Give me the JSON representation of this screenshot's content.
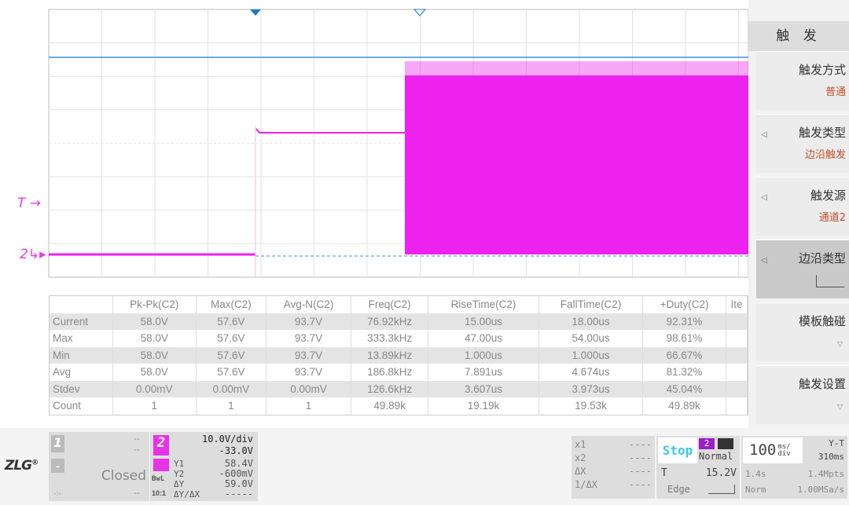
{
  "waveform": {
    "channel_marker": "2",
    "trigger_marker": "T",
    "colors": {
      "ch2": "#ee22ee",
      "ref": "#3a8fd6",
      "grid": "#e2e2e2"
    }
  },
  "measurements": {
    "headers": [
      "",
      "Pk-Pk(C2)",
      "Max(C2)",
      "Avg-N(C2)",
      "Freq(C2)",
      "RiseTime(C2)",
      "FallTime(C2)",
      "+Duty(C2)",
      "Ite"
    ],
    "rows": [
      [
        "Current",
        "58.0V",
        "57.6V",
        "93.7V",
        "76.92kHz",
        "15.00us",
        "18.00us",
        "92.31%",
        ""
      ],
      [
        "Max",
        "58.0V",
        "57.6V",
        "93.7V",
        "333.3kHz",
        "47.00us",
        "54.00us",
        "98.61%",
        ""
      ],
      [
        "Min",
        "58.0V",
        "57.6V",
        "93.7V",
        "13.89kHz",
        "1.000us",
        "1.000us",
        "66.67%",
        ""
      ],
      [
        "Avg",
        "58.0V",
        "57.6V",
        "93.7V",
        "186.8kHz",
        "7.891us",
        "4.674us",
        "81.32%",
        ""
      ],
      [
        "Stdev",
        "0.00mV",
        "0.00mV",
        "0.00mV",
        "126.6kHz",
        "3.607us",
        "3.973us",
        "45.04%",
        ""
      ],
      [
        "Count",
        "1",
        "1",
        "1",
        "49.89k",
        "19.19k",
        "19.53k",
        "49.89k",
        ""
      ]
    ]
  },
  "menu": {
    "title": "触 发",
    "items": [
      {
        "label": "触发方式",
        "value": "普通"
      },
      {
        "label": "触发类型",
        "value": "边沿触发"
      },
      {
        "label": "触发源",
        "value": "通道2"
      },
      {
        "label": "边沿类型",
        "value": ""
      },
      {
        "label": "模板触碰",
        "value": ""
      },
      {
        "label": "触发设置",
        "value": ""
      }
    ]
  },
  "bottom": {
    "logo": "ZLG",
    "ch1": {
      "num": "1",
      "a": "--",
      "b": "--",
      "minus": "-",
      "status": "Closed",
      "c": "--",
      "d": "-:-"
    },
    "ch2": {
      "num": "2",
      "scale": "10.0V/div",
      "offset": "-33.0V",
      "bwl": "BwL",
      "probe": "10:1",
      "y1_label": "Y1",
      "y1": "58.4V",
      "y2_label": "Y2",
      "y2": "-600mV",
      "dy_label": "ΔY",
      "dy": "59.0V",
      "dydx_label": "ΔY/ΔX",
      "dydx": "-----"
    },
    "cursor": {
      "x1_label": "x1",
      "x1": "----",
      "x2_label": "x2",
      "x2": "----",
      "dx_label": "ΔX",
      "dx": "----",
      "inv_label": "1/ΔX",
      "inv": "----"
    },
    "run": {
      "state": "Stop",
      "src": "2",
      "mode": "Normal",
      "t_label": "T",
      "level": "15.2V",
      "type": "Edge"
    },
    "time": {
      "scale": "100",
      "unit": "ms/ div",
      "mode": "Y-T",
      "delay": "310ms",
      "span": "1.4s",
      "points": "1.4Mpts",
      "acq": "Norm",
      "rate": "1.00MSa/s"
    }
  }
}
